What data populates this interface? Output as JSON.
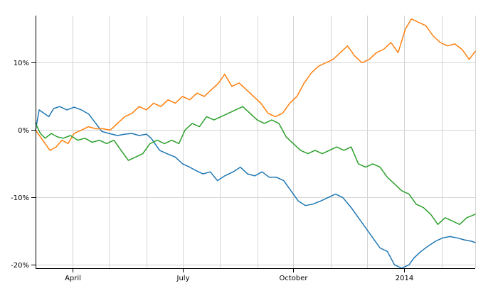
{
  "chart_data": {
    "type": "line",
    "title": "",
    "xlabel": "",
    "ylabel": "",
    "x_domain": [
      "2013-03-01",
      "2014-03-01"
    ],
    "xlim": [
      "2013-03-01",
      "2014-03-01"
    ],
    "ylim": [
      -0.205,
      0.17
    ],
    "grid": true,
    "legend": "none",
    "x_ticks": [
      {
        "date": "2013-04-01",
        "label": "April"
      },
      {
        "date": "2013-07-01",
        "label": "July"
      },
      {
        "date": "2013-10-01",
        "label": "October"
      },
      {
        "date": "2014-01-01",
        "label": "2014"
      }
    ],
    "x_gridlines": [
      "2013-03-01",
      "2013-04-01",
      "2013-05-01",
      "2013-06-01",
      "2013-07-01",
      "2013-08-01",
      "2013-09-01",
      "2013-10-01",
      "2013-11-01",
      "2013-12-01",
      "2014-01-01",
      "2014-02-01",
      "2014-03-01"
    ],
    "y_ticks": [
      {
        "value": 0.1,
        "label": "10%"
      },
      {
        "value": 0.0,
        "label": "0%"
      },
      {
        "value": -0.1,
        "label": "-10%"
      },
      {
        "value": -0.2,
        "label": "-20%"
      }
    ],
    "series": [
      {
        "color": "#1f77b4",
        "points": [
          [
            "2013-03-01",
            0.0
          ],
          [
            "2013-03-04",
            0.03
          ],
          [
            "2013-03-08",
            0.025
          ],
          [
            "2013-03-12",
            0.02
          ],
          [
            "2013-03-16",
            0.032
          ],
          [
            "2013-03-21",
            0.035
          ],
          [
            "2013-03-27",
            0.03
          ],
          [
            "2013-04-02",
            0.034
          ],
          [
            "2013-04-08",
            0.03
          ],
          [
            "2013-04-14",
            0.024
          ],
          [
            "2013-04-20",
            0.01
          ],
          [
            "2013-04-25",
            -0.002
          ],
          [
            "2013-05-01",
            -0.005
          ],
          [
            "2013-05-08",
            -0.008
          ],
          [
            "2013-05-14",
            -0.006
          ],
          [
            "2013-05-20",
            -0.005
          ],
          [
            "2013-05-26",
            -0.008
          ],
          [
            "2013-06-01",
            -0.006
          ],
          [
            "2013-06-05",
            -0.012
          ],
          [
            "2013-06-12",
            -0.03
          ],
          [
            "2013-06-18",
            -0.035
          ],
          [
            "2013-06-25",
            -0.04
          ],
          [
            "2013-07-01",
            -0.05
          ],
          [
            "2013-07-07",
            -0.055
          ],
          [
            "2013-07-12",
            -0.06
          ],
          [
            "2013-07-18",
            -0.065
          ],
          [
            "2013-07-24",
            -0.062
          ],
          [
            "2013-07-30",
            -0.075
          ],
          [
            "2013-08-05",
            -0.068
          ],
          [
            "2013-08-12",
            -0.062
          ],
          [
            "2013-08-18",
            -0.055
          ],
          [
            "2013-08-24",
            -0.065
          ],
          [
            "2013-08-30",
            -0.068
          ],
          [
            "2013-09-05",
            -0.062
          ],
          [
            "2013-09-11",
            -0.07
          ],
          [
            "2013-09-17",
            -0.07
          ],
          [
            "2013-09-23",
            -0.075
          ],
          [
            "2013-09-29",
            -0.09
          ],
          [
            "2013-10-05",
            -0.105
          ],
          [
            "2013-10-11",
            -0.112
          ],
          [
            "2013-10-17",
            -0.11
          ],
          [
            "2013-10-24",
            -0.105
          ],
          [
            "2013-10-30",
            -0.1
          ],
          [
            "2013-11-05",
            -0.095
          ],
          [
            "2013-11-11",
            -0.1
          ],
          [
            "2013-11-18",
            -0.115
          ],
          [
            "2013-11-24",
            -0.13
          ],
          [
            "2013-11-30",
            -0.145
          ],
          [
            "2013-12-06",
            -0.16
          ],
          [
            "2013-12-12",
            -0.175
          ],
          [
            "2013-12-18",
            -0.18
          ],
          [
            "2013-12-24",
            -0.2
          ],
          [
            "2013-12-30",
            -0.205
          ],
          [
            "2014-01-05",
            -0.2
          ],
          [
            "2014-01-09",
            -0.19
          ],
          [
            "2014-01-15",
            -0.18
          ],
          [
            "2014-01-21",
            -0.172
          ],
          [
            "2014-01-27",
            -0.165
          ],
          [
            "2014-02-02",
            -0.16
          ],
          [
            "2014-02-08",
            -0.158
          ],
          [
            "2014-02-14",
            -0.16
          ],
          [
            "2014-02-20",
            -0.163
          ],
          [
            "2014-02-26",
            -0.165
          ],
          [
            "2014-03-01",
            -0.167
          ]
        ]
      },
      {
        "color": "#ff7f0e",
        "points": [
          [
            "2013-03-01",
            0.0
          ],
          [
            "2013-03-05",
            -0.01
          ],
          [
            "2013-03-09",
            -0.02
          ],
          [
            "2013-03-13",
            -0.03
          ],
          [
            "2013-03-18",
            -0.025
          ],
          [
            "2013-03-23",
            -0.015
          ],
          [
            "2013-03-28",
            -0.02
          ],
          [
            "2013-04-02",
            -0.005
          ],
          [
            "2013-04-08",
            0.0
          ],
          [
            "2013-04-14",
            0.005
          ],
          [
            "2013-04-20",
            0.002
          ],
          [
            "2013-04-26",
            0.002
          ],
          [
            "2013-05-02",
            0.0
          ],
          [
            "2013-05-08",
            0.01
          ],
          [
            "2013-05-14",
            0.02
          ],
          [
            "2013-05-20",
            0.025
          ],
          [
            "2013-05-26",
            0.035
          ],
          [
            "2013-06-01",
            0.03
          ],
          [
            "2013-06-07",
            0.04
          ],
          [
            "2013-06-13",
            0.035
          ],
          [
            "2013-06-19",
            0.045
          ],
          [
            "2013-06-25",
            0.04
          ],
          [
            "2013-07-01",
            0.05
          ],
          [
            "2013-07-07",
            0.045
          ],
          [
            "2013-07-13",
            0.055
          ],
          [
            "2013-07-19",
            0.05
          ],
          [
            "2013-07-25",
            0.06
          ],
          [
            "2013-07-31",
            0.07
          ],
          [
            "2013-08-05",
            0.083
          ],
          [
            "2013-08-11",
            0.065
          ],
          [
            "2013-08-17",
            0.07
          ],
          [
            "2013-08-23",
            0.06
          ],
          [
            "2013-08-29",
            0.05
          ],
          [
            "2013-09-04",
            0.04
          ],
          [
            "2013-09-10",
            0.025
          ],
          [
            "2013-09-16",
            0.02
          ],
          [
            "2013-09-22",
            0.025
          ],
          [
            "2013-09-28",
            0.04
          ],
          [
            "2013-10-04",
            0.05
          ],
          [
            "2013-10-10",
            0.07
          ],
          [
            "2013-10-16",
            0.085
          ],
          [
            "2013-10-22",
            0.095
          ],
          [
            "2013-10-28",
            0.1
          ],
          [
            "2013-11-03",
            0.105
          ],
          [
            "2013-11-09",
            0.115
          ],
          [
            "2013-11-15",
            0.125
          ],
          [
            "2013-11-21",
            0.11
          ],
          [
            "2013-11-27",
            0.1
          ],
          [
            "2013-12-03",
            0.105
          ],
          [
            "2013-12-09",
            0.115
          ],
          [
            "2013-12-15",
            0.12
          ],
          [
            "2013-12-21",
            0.13
          ],
          [
            "2013-12-27",
            0.115
          ],
          [
            "2014-01-02",
            0.15
          ],
          [
            "2014-01-07",
            0.165
          ],
          [
            "2014-01-13",
            0.16
          ],
          [
            "2014-01-19",
            0.155
          ],
          [
            "2014-01-25",
            0.14
          ],
          [
            "2014-01-31",
            0.13
          ],
          [
            "2014-02-06",
            0.125
          ],
          [
            "2014-02-12",
            0.128
          ],
          [
            "2014-02-18",
            0.12
          ],
          [
            "2014-02-24",
            0.105
          ],
          [
            "2014-03-01",
            0.117
          ]
        ]
      },
      {
        "color": "#2ca02c",
        "points": [
          [
            "2013-03-01",
            0.01
          ],
          [
            "2013-03-05",
            -0.005
          ],
          [
            "2013-03-09",
            -0.012
          ],
          [
            "2013-03-14",
            -0.005
          ],
          [
            "2013-03-19",
            -0.01
          ],
          [
            "2013-03-24",
            -0.012
          ],
          [
            "2013-03-30",
            -0.008
          ],
          [
            "2013-04-05",
            -0.015
          ],
          [
            "2013-04-11",
            -0.012
          ],
          [
            "2013-04-17",
            -0.018
          ],
          [
            "2013-04-23",
            -0.015
          ],
          [
            "2013-04-29",
            -0.02
          ],
          [
            "2013-05-05",
            -0.015
          ],
          [
            "2013-05-11",
            -0.03
          ],
          [
            "2013-05-17",
            -0.045
          ],
          [
            "2013-05-23",
            -0.04
          ],
          [
            "2013-05-29",
            -0.035
          ],
          [
            "2013-06-04",
            -0.02
          ],
          [
            "2013-06-10",
            -0.015
          ],
          [
            "2013-06-16",
            -0.02
          ],
          [
            "2013-06-22",
            -0.015
          ],
          [
            "2013-06-28",
            -0.02
          ],
          [
            "2013-07-03",
            0.0
          ],
          [
            "2013-07-09",
            0.01
          ],
          [
            "2013-07-15",
            0.005
          ],
          [
            "2013-07-21",
            0.02
          ],
          [
            "2013-07-27",
            0.015
          ],
          [
            "2013-08-02",
            0.02
          ],
          [
            "2013-08-08",
            0.025
          ],
          [
            "2013-08-14",
            0.03
          ],
          [
            "2013-08-20",
            0.035
          ],
          [
            "2013-08-26",
            0.025
          ],
          [
            "2013-09-01",
            0.015
          ],
          [
            "2013-09-07",
            0.01
          ],
          [
            "2013-09-13",
            0.015
          ],
          [
            "2013-09-19",
            0.01
          ],
          [
            "2013-09-25",
            -0.01
          ],
          [
            "2013-10-01",
            -0.02
          ],
          [
            "2013-10-07",
            -0.03
          ],
          [
            "2013-10-13",
            -0.035
          ],
          [
            "2013-10-19",
            -0.03
          ],
          [
            "2013-10-25",
            -0.035
          ],
          [
            "2013-10-31",
            -0.03
          ],
          [
            "2013-11-06",
            -0.025
          ],
          [
            "2013-11-12",
            -0.03
          ],
          [
            "2013-11-18",
            -0.025
          ],
          [
            "2013-11-24",
            -0.05
          ],
          [
            "2013-11-30",
            -0.055
          ],
          [
            "2013-12-06",
            -0.05
          ],
          [
            "2013-12-12",
            -0.055
          ],
          [
            "2013-12-18",
            -0.07
          ],
          [
            "2013-12-24",
            -0.08
          ],
          [
            "2013-12-30",
            -0.09
          ],
          [
            "2014-01-05",
            -0.095
          ],
          [
            "2014-01-11",
            -0.11
          ],
          [
            "2014-01-17",
            -0.115
          ],
          [
            "2014-01-23",
            -0.125
          ],
          [
            "2014-01-29",
            -0.14
          ],
          [
            "2014-02-04",
            -0.13
          ],
          [
            "2014-02-10",
            -0.135
          ],
          [
            "2014-02-16",
            -0.14
          ],
          [
            "2014-02-22",
            -0.13
          ],
          [
            "2014-03-01",
            -0.125
          ]
        ]
      }
    ]
  }
}
